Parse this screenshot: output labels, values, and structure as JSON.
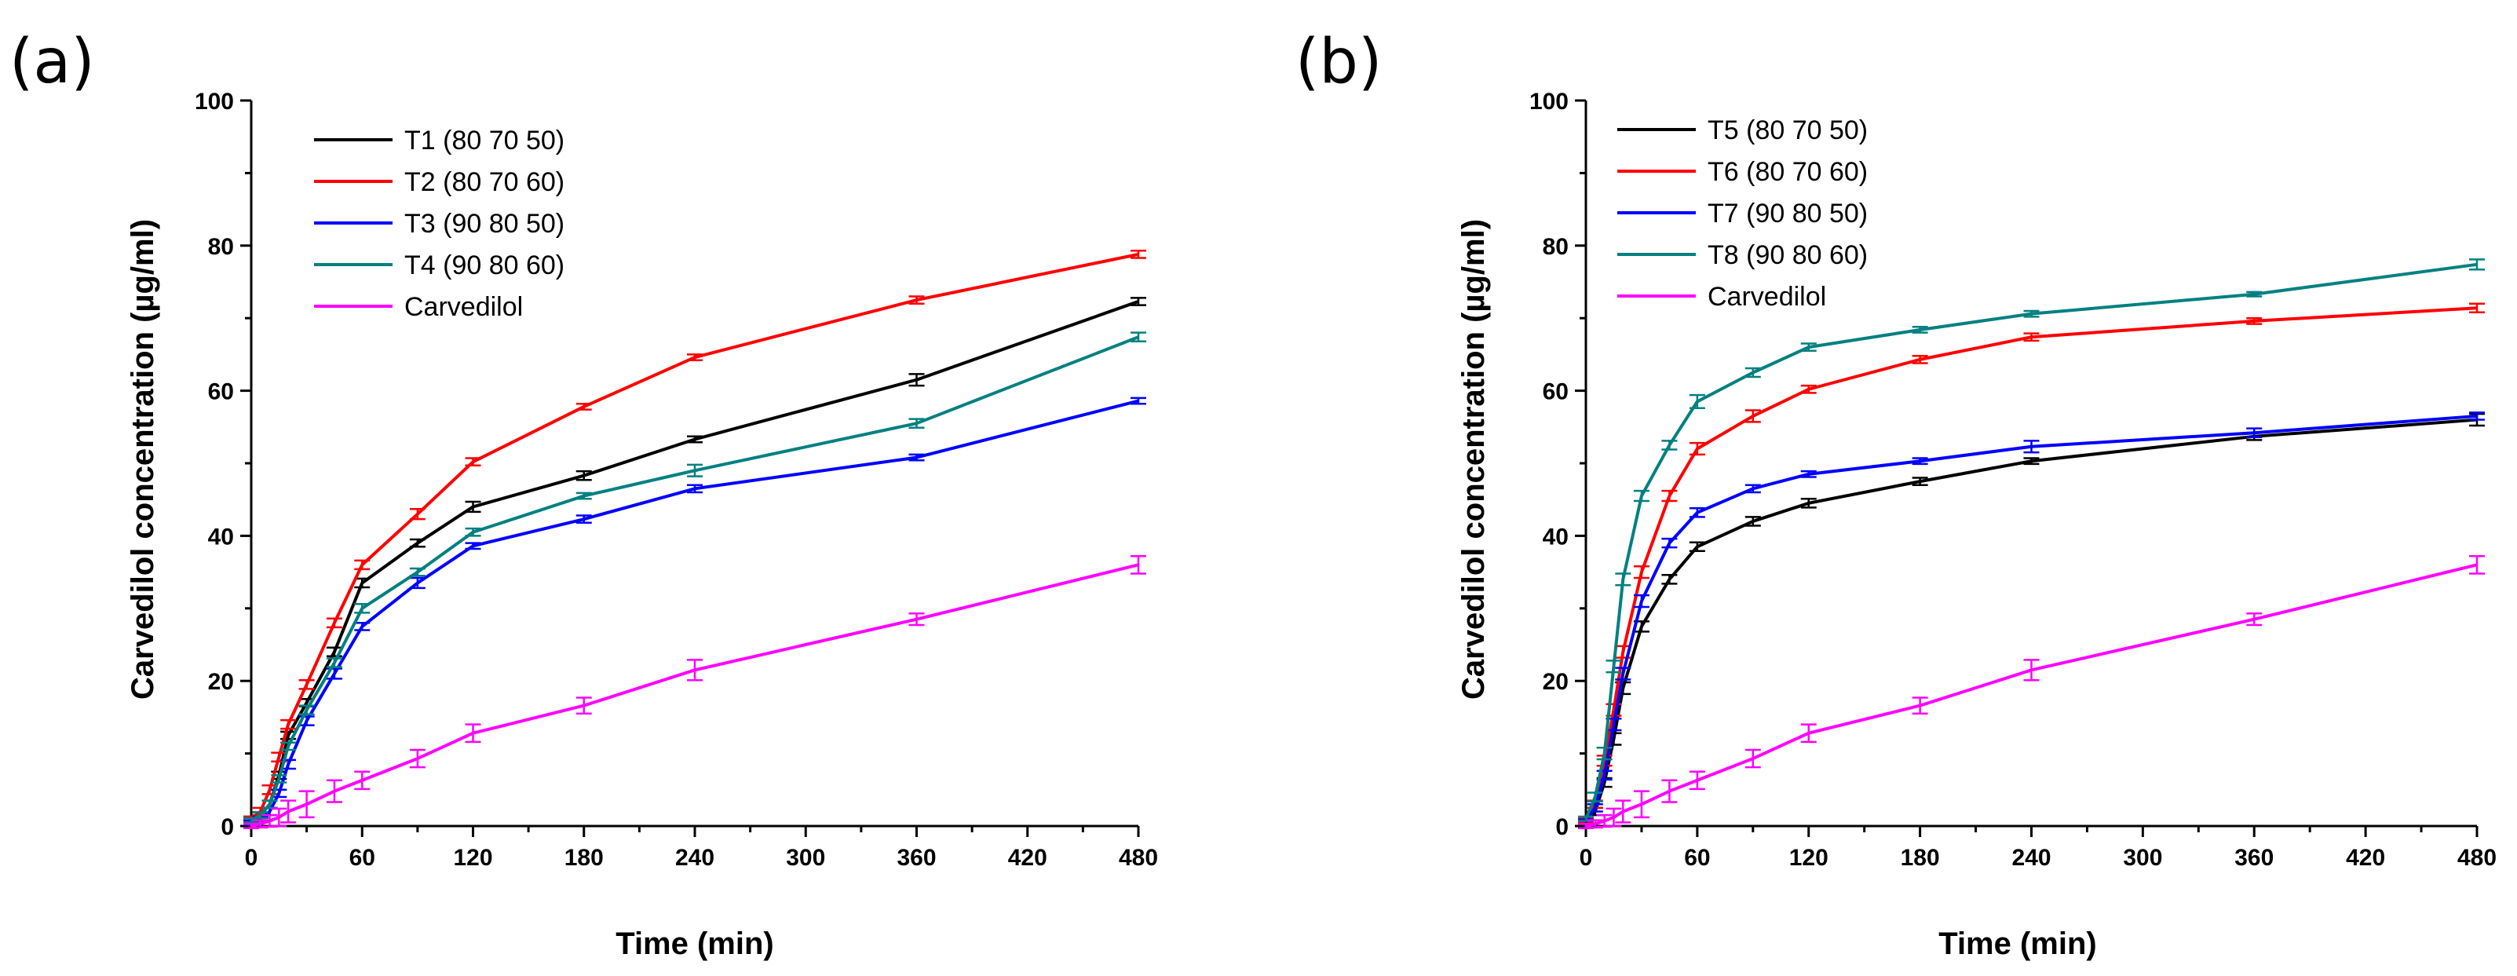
{
  "chart_data": [
    {
      "type": "line",
      "panel": "(a)",
      "xlabel": "Time (min)",
      "ylabel": "Carvedilol concentration (µg/ml)",
      "xlim": [
        0,
        480
      ],
      "ylim": [
        0,
        100
      ],
      "xticks": [
        0,
        60,
        120,
        180,
        240,
        300,
        360,
        420,
        480
      ],
      "yticks": [
        0,
        20,
        40,
        60,
        80,
        100
      ],
      "legend_position": "top-left",
      "x": [
        0,
        5,
        10,
        15,
        20,
        30,
        45,
        60,
        90,
        120,
        180,
        240,
        360,
        480
      ],
      "series": [
        {
          "name": "T1 (80 70 50)",
          "color": "#000000",
          "values": [
            1,
            1.5,
            3,
            7,
            12.5,
            17,
            24,
            33.5,
            39,
            44,
            48.3,
            53.3,
            61.5,
            72.3
          ],
          "errors": [
            0.3,
            0.4,
            0.5,
            0.5,
            0.5,
            0.5,
            0.6,
            0.6,
            0.5,
            0.7,
            0.6,
            0.4,
            0.8,
            0.5
          ]
        },
        {
          "name": "T2 (80 70 60)",
          "color": "#ff0000",
          "values": [
            1,
            2,
            5,
            9.5,
            14,
            19.5,
            28,
            36,
            43,
            50.2,
            57.8,
            64.6,
            72.5,
            78.8
          ],
          "errors": [
            0.3,
            0.5,
            0.6,
            0.6,
            0.6,
            0.6,
            0.6,
            0.6,
            0.7,
            0.5,
            0.4,
            0.4,
            0.5,
            0.5
          ]
        },
        {
          "name": "T3 (90 80 50)",
          "color": "#0000ff",
          "values": [
            0.5,
            1,
            2,
            4.5,
            8.5,
            14.5,
            21,
            27.5,
            33.5,
            38.6,
            42.3,
            46.5,
            50.8,
            58.6
          ],
          "errors": [
            0.3,
            0.3,
            0.5,
            0.5,
            0.6,
            0.6,
            0.7,
            0.5,
            0.7,
            0.4,
            0.5,
            0.5,
            0.4,
            0.4
          ]
        },
        {
          "name": "T4 (90 80 60)",
          "color": "#008080",
          "values": [
            0.8,
            1.5,
            3,
            6.5,
            11,
            16,
            22.5,
            30,
            35,
            40.5,
            45.5,
            49,
            55.5,
            67.4
          ],
          "errors": [
            0.3,
            0.4,
            0.5,
            0.5,
            0.5,
            0.6,
            0.6,
            0.6,
            0.5,
            0.5,
            0.4,
            0.8,
            0.6,
            0.6
          ]
        },
        {
          "name": "Carvedilol",
          "color": "#ff00ff",
          "values": [
            0,
            0.3,
            0.7,
            1.2,
            2,
            3,
            4.8,
            6.3,
            9.3,
            12.8,
            16.6,
            21.5,
            28.5,
            36
          ],
          "errors": [
            0.3,
            0.5,
            0.8,
            1.2,
            1.5,
            1.8,
            1.5,
            1.2,
            1.2,
            1.2,
            1.1,
            1.4,
            0.8,
            1.2
          ]
        }
      ]
    },
    {
      "type": "line",
      "panel": "(b)",
      "xlabel": "Time (min)",
      "ylabel": "Carvedilol concentration (µg/ml)",
      "xlim": [
        0,
        480
      ],
      "ylim": [
        0,
        100
      ],
      "xticks": [
        0,
        60,
        120,
        180,
        240,
        300,
        360,
        420,
        480
      ],
      "yticks": [
        0,
        20,
        40,
        60,
        80,
        100
      ],
      "legend_position": "top-left",
      "x": [
        0,
        5,
        10,
        15,
        20,
        30,
        45,
        60,
        90,
        120,
        180,
        240,
        360,
        480
      ],
      "series": [
        {
          "name": "T5 (80 70 50)",
          "color": "#000000",
          "values": [
            0.5,
            2,
            6,
            12,
            19,
            27.5,
            34,
            38.5,
            42,
            44.5,
            47.5,
            50.3,
            53.7,
            56
          ],
          "errors": [
            0.3,
            0.5,
            0.6,
            0.8,
            0.8,
            0.7,
            0.6,
            0.6,
            0.6,
            0.6,
            0.5,
            0.4,
            0.5,
            0.8
          ]
        },
        {
          "name": "T6 (80 70 60)",
          "color": "#ff0000",
          "values": [
            0.8,
            3,
            9,
            16,
            24,
            35,
            45.5,
            52,
            56.5,
            60.2,
            64.3,
            67.4,
            69.6,
            71.4
          ],
          "errors": [
            0.3,
            0.5,
            0.7,
            0.8,
            0.8,
            0.8,
            0.7,
            0.8,
            0.8,
            0.5,
            0.5,
            0.5,
            0.4,
            0.6
          ]
        },
        {
          "name": "T7 (90 80 50)",
          "color": "#0000ff",
          "values": [
            0.6,
            2.5,
            7,
            14,
            21,
            31,
            39,
            43.2,
            46.5,
            48.5,
            50.3,
            52.3,
            54.2,
            56.5
          ],
          "errors": [
            0.3,
            0.5,
            0.6,
            0.8,
            0.8,
            0.8,
            0.6,
            0.6,
            0.5,
            0.4,
            0.4,
            0.8,
            0.6,
            0.5
          ]
        },
        {
          "name": "T8 (90 80 60)",
          "color": "#008080",
          "values": [
            1,
            4,
            10,
            22,
            34,
            45.5,
            52.5,
            58.5,
            62.5,
            66,
            68.4,
            70.6,
            73.3,
            77.4
          ],
          "errors": [
            0.3,
            0.6,
            0.8,
            0.8,
            0.8,
            0.7,
            0.6,
            0.9,
            0.6,
            0.5,
            0.4,
            0.4,
            0.3,
            0.7
          ]
        },
        {
          "name": "Carvedilol",
          "color": "#ff00ff",
          "values": [
            0,
            0.3,
            0.7,
            1.2,
            2,
            3,
            4.8,
            6.3,
            9.3,
            12.8,
            16.6,
            21.5,
            28.5,
            36
          ],
          "errors": [
            0.3,
            0.5,
            0.8,
            1.2,
            1.5,
            1.8,
            1.5,
            1.2,
            1.2,
            1.2,
            1.1,
            1.4,
            0.8,
            1.2
          ]
        }
      ]
    }
  ]
}
